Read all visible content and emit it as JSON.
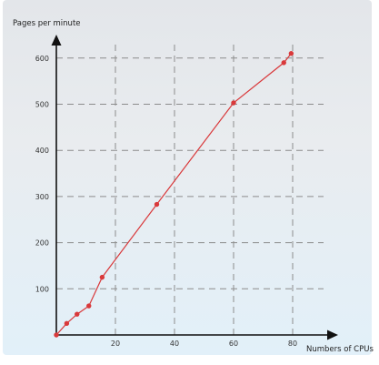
{
  "chart_data": {
    "type": "line",
    "title": "",
    "xlabel": "Numbers of CPUs",
    "ylabel": "Pages per minute",
    "xlim": [
      0,
      90
    ],
    "ylim": [
      0,
      650
    ],
    "x_ticks": [
      20,
      40,
      60,
      80
    ],
    "y_ticks": [
      100,
      200,
      300,
      400,
      500,
      600
    ],
    "grid": "dashed",
    "series": [
      {
        "x": [
          0,
          3.5,
          7,
          11,
          15.5,
          34,
          60,
          77,
          79.5
        ],
        "y": [
          0,
          25,
          45,
          63,
          125,
          283,
          503,
          590,
          610
        ]
      }
    ]
  },
  "colors": {
    "series": "#d9393b",
    "axis": "#111111",
    "grid": "#8c8c8c"
  }
}
